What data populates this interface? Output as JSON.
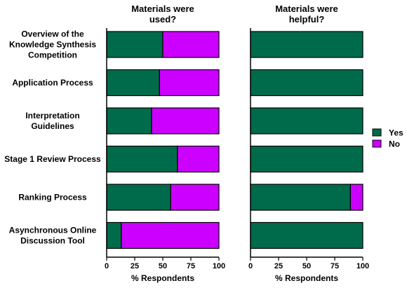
{
  "chart_data": {
    "type": "bar",
    "orientation": "horizontal",
    "stacked": true,
    "categories": [
      "Overview of the Knowledge Synthesis Competition",
      "Application Process",
      "Interpretation Guidelines",
      "Stage 1 Review Process",
      "Ranking Process",
      "Asynchronous Online Discussion Tool"
    ],
    "category_lines": [
      [
        "Overview of the",
        "Knowledge Synthesis",
        "Competition"
      ],
      [
        "Application Process"
      ],
      [
        "Interpretation",
        "Guidelines"
      ],
      [
        "Stage 1 Review Process"
      ],
      [
        "Ranking Process"
      ],
      [
        "Asynchronous Online",
        "Discussion Tool"
      ]
    ],
    "panels": [
      {
        "title_lines": [
          "Materials were",
          "used?"
        ],
        "xlabel": "% Respondents",
        "xlim": [
          0,
          100
        ],
        "xticks": [
          0,
          25,
          50,
          75,
          100
        ],
        "series": [
          {
            "name": "Yes",
            "color": "#006b4a",
            "values": [
              50,
              47,
              40,
              63,
              57,
              13
            ]
          },
          {
            "name": "No",
            "color": "#cc00ff",
            "values": [
              50,
              53,
              60,
              37,
              43,
              87
            ]
          }
        ]
      },
      {
        "title_lines": [
          "Materials were",
          "helpful?"
        ],
        "xlabel": "% Respondents",
        "xlim": [
          0,
          100
        ],
        "xticks": [
          0,
          25,
          50,
          75,
          100
        ],
        "series": [
          {
            "name": "Yes",
            "color": "#006b4a",
            "values": [
              100,
              100,
              100,
              100,
              89,
              100
            ]
          },
          {
            "name": "No",
            "color": "#cc00ff",
            "values": [
              0,
              0,
              0,
              0,
              11,
              0
            ]
          }
        ]
      }
    ],
    "legend": {
      "placement": "right",
      "items": [
        {
          "label": "Yes",
          "color": "#006b4a"
        },
        {
          "label": "No",
          "color": "#cc00ff"
        }
      ]
    },
    "grid": false
  }
}
